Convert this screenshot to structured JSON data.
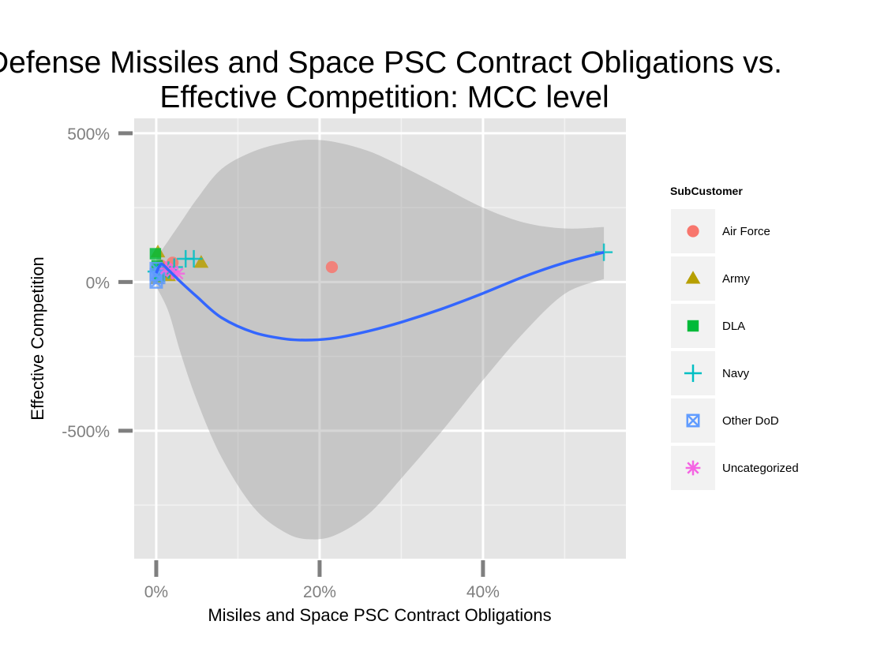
{
  "chart_data": {
    "type": "scatter",
    "title_lines": [
      "Defense Missiles and Space PSC Contract Obligations vs.",
      "Effective Competition: MCC level"
    ],
    "xlabel": "Misiles and Space PSC Contract Obligations",
    "ylabel": "Effective Competition",
    "x_unit": "percent",
    "y_unit": "percent",
    "xlim": [
      -2.7,
      57.5
    ],
    "ylim": [
      -930,
      550
    ],
    "x_ticks": [
      {
        "value": 0,
        "label": "0%"
      },
      {
        "value": 20,
        "label": "20%"
      },
      {
        "value": 40,
        "label": "40%"
      }
    ],
    "y_ticks": [
      {
        "value": 500,
        "label": "500%"
      },
      {
        "value": 0,
        "label": "0%"
      },
      {
        "value": -500,
        "label": "-500%"
      }
    ],
    "x_minor": [
      10,
      30,
      50
    ],
    "y_minor": [
      250,
      -250,
      -750
    ],
    "grid": true,
    "legend": {
      "title": "SubCustomer",
      "position": "right",
      "entries": [
        {
          "label": "Air Force",
          "color": "#F8766D",
          "shape": "circle"
        },
        {
          "label": "Army",
          "color": "#B79F00",
          "shape": "triangle"
        },
        {
          "label": "DLA",
          "color": "#00BA38",
          "shape": "square"
        },
        {
          "label": "Navy",
          "color": "#00BFC4",
          "shape": "plus"
        },
        {
          "label": "Other DoD",
          "color": "#619CFF",
          "shape": "boxx"
        },
        {
          "label": "Uncategorized",
          "color": "#F564E3",
          "shape": "asterisk"
        }
      ]
    },
    "series": [
      {
        "name": "Air Force",
        "points": [
          [
            21.5,
            50
          ],
          [
            2.0,
            65
          ],
          [
            0.6,
            55
          ],
          [
            1.2,
            30
          ],
          [
            0.3,
            25
          ]
        ]
      },
      {
        "name": "Army",
        "points": [
          [
            0.2,
            100
          ],
          [
            5.5,
            65
          ],
          [
            0.8,
            45
          ],
          [
            0.1,
            10
          ],
          [
            1.5,
            20
          ]
        ]
      },
      {
        "name": "DLA",
        "points": [
          [
            -0.1,
            95
          ],
          [
            0.1,
            55
          ],
          [
            1.0,
            35
          ],
          [
            0.4,
            20
          ]
        ]
      },
      {
        "name": "Navy",
        "points": [
          [
            54.8,
            100
          ],
          [
            3.6,
            78
          ],
          [
            4.6,
            78
          ],
          [
            0.0,
            35
          ],
          [
            1.5,
            40
          ],
          [
            2.2,
            50
          ],
          [
            0.6,
            30
          ]
        ]
      },
      {
        "name": "Other DoD",
        "points": [
          [
            0.0,
            0
          ],
          [
            0.0,
            45
          ],
          [
            0.3,
            15
          ],
          [
            0.0,
            25
          ]
        ]
      },
      {
        "name": "Uncategorized",
        "points": [
          [
            2.6,
            28
          ],
          [
            1.9,
            35
          ],
          [
            1.2,
            45
          ]
        ]
      }
    ],
    "smooth": {
      "color": "#3366FF",
      "band_color": "#999999",
      "curve": [
        [
          0.0,
          30
        ],
        [
          0.6,
          60
        ],
        [
          1.5,
          40
        ],
        [
          3,
          0
        ],
        [
          5,
          -50
        ],
        [
          8,
          -120
        ],
        [
          12,
          -170
        ],
        [
          16,
          -192
        ],
        [
          19,
          -195
        ],
        [
          22,
          -188
        ],
        [
          26,
          -165
        ],
        [
          30,
          -135
        ],
        [
          35,
          -90
        ],
        [
          40,
          -38
        ],
        [
          45,
          18
        ],
        [
          50,
          65
        ],
        [
          54.8,
          100
        ]
      ],
      "band_upper": [
        [
          0.0,
          80
        ],
        [
          1.5,
          140
        ],
        [
          3,
          200
        ],
        [
          5,
          280
        ],
        [
          8,
          380
        ],
        [
          12,
          440
        ],
        [
          16,
          470
        ],
        [
          19,
          478
        ],
        [
          22,
          470
        ],
        [
          26,
          440
        ],
        [
          30,
          390
        ],
        [
          35,
          320
        ],
        [
          40,
          250
        ],
        [
          45,
          200
        ],
        [
          50,
          180
        ],
        [
          54.8,
          185
        ]
      ],
      "band_lower": [
        [
          0.0,
          -15
        ],
        [
          1.5,
          -100
        ],
        [
          3,
          -240
        ],
        [
          5,
          -400
        ],
        [
          8,
          -590
        ],
        [
          12,
          -760
        ],
        [
          16,
          -845
        ],
        [
          19,
          -865
        ],
        [
          22,
          -850
        ],
        [
          26,
          -780
        ],
        [
          30,
          -660
        ],
        [
          35,
          -500
        ],
        [
          40,
          -330
        ],
        [
          45,
          -170
        ],
        [
          50,
          -40
        ],
        [
          54.8,
          10
        ]
      ]
    }
  }
}
